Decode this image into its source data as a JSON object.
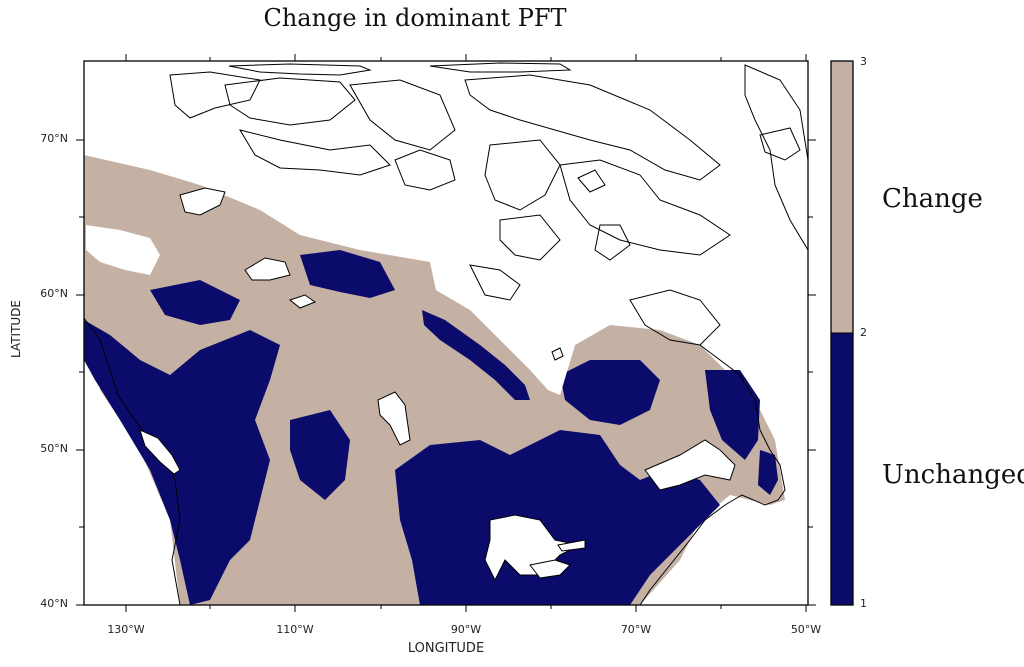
{
  "title": "Change in dominant PFT",
  "x_axis": {
    "label": "LONGITUDE",
    "ticks": [
      "130°W",
      "110°W",
      "90°W",
      "70°W",
      "50°W"
    ]
  },
  "y_axis": {
    "label": "LATITUDE",
    "ticks": [
      "40°N",
      "50°N",
      "60°N",
      "70°N"
    ]
  },
  "colorbar": {
    "tick_labels": [
      "1",
      "2",
      "3"
    ],
    "categories": [
      {
        "label": "Change",
        "color": "#c4b1a4"
      },
      {
        "label": "Unchanged",
        "color": "#0b0b6b"
      }
    ]
  },
  "map": {
    "extent_lon": [
      -135,
      -50
    ],
    "extent_lat": [
      40,
      75
    ],
    "ocean_color": "#ffffff",
    "coastline_color": "#000000"
  }
}
